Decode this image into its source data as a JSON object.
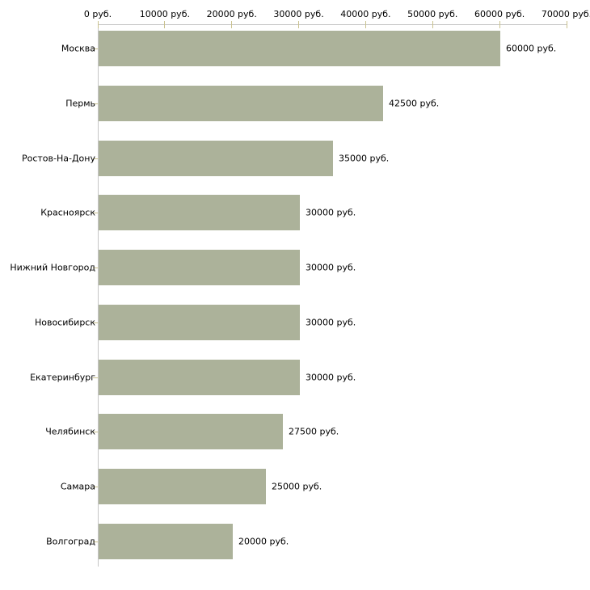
{
  "chart_data": {
    "type": "bar",
    "orientation": "horizontal",
    "title": "",
    "xlabel": "",
    "ylabel": "",
    "unit": "руб.",
    "categories": [
      "Москва",
      "Пермь",
      "Ростов-На-Дону",
      "Красноярск",
      "Нижний Новгород",
      "Новосибирск",
      "Екатеринбург",
      "Челябинск",
      "Самара",
      "Волгоград"
    ],
    "values": [
      60000,
      42500,
      35000,
      30000,
      30000,
      30000,
      30000,
      27500,
      25000,
      20000
    ],
    "bar_labels": [
      "60000 руб.",
      "42500 руб.",
      "35000 руб.",
      "30000 руб.",
      "30000 руб.",
      "30000 руб.",
      "30000 руб.",
      "27500 руб.",
      "25000 руб.",
      "20000 руб."
    ],
    "x_ticks": [
      0,
      10000,
      20000,
      30000,
      40000,
      50000,
      60000,
      70000
    ],
    "x_tick_labels": [
      "0 руб.",
      "10000 руб.",
      "20000 руб.",
      "30000 руб.",
      "40000 руб.",
      "50000 руб.",
      "60000 руб.",
      "70000 руб."
    ],
    "xlim": [
      0,
      70000
    ],
    "grid": false,
    "legend": false,
    "colors": {
      "bar": "#acb29a",
      "axis_line": "#c5c5c5",
      "tick": "#cac28e",
      "text": "#000000",
      "background": "#ffffff"
    }
  }
}
